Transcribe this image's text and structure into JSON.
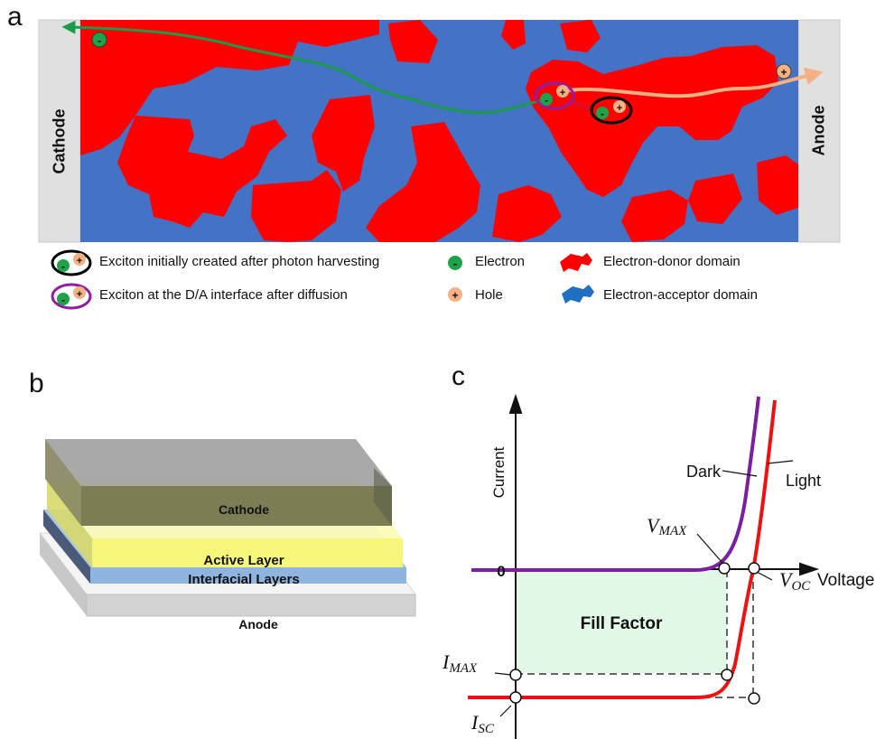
{
  "panel_a": {
    "letter": "a",
    "cathode_label": "Cathode",
    "anode_label": "Anode",
    "electron_symbol": "-",
    "hole_symbol": "+",
    "colors": {
      "acceptor": "#4472c4",
      "donor": "#ff0000",
      "electrode": "#e0e0e0",
      "electron": "#1fa34a",
      "hole": "#f4b183",
      "electron_path": "#1a9b4a",
      "hole_path": "#f4b183",
      "exciton_initial_ring": "#000000",
      "exciton_interface_ring": "#8e1fa0"
    }
  },
  "legend": {
    "exciton_initial": "Exciton initially created after photon harvesting",
    "exciton_interface": "Exciton at the D/A interface after diffusion",
    "electron": "Electron",
    "hole": "Hole",
    "donor": "Electron-donor domain",
    "acceptor": "Electron-acceptor domain"
  },
  "panel_b": {
    "letter": "b",
    "layers": {
      "cathode": "Cathode",
      "active": "Active Layer",
      "interfacial": "Interfacial Layers",
      "anode": "Anode"
    }
  },
  "panel_c": {
    "letter": "c",
    "y_axis_label": "Current",
    "x_axis_label": "Voltage",
    "origin_label": "0",
    "dark_label": "Dark",
    "light_label": "Light",
    "fill_factor_label": "Fill Factor",
    "vmax": {
      "main": "V",
      "sub": "MAX"
    },
    "voc": {
      "main": "V",
      "sub": "OC"
    },
    "imax": {
      "main": "I",
      "sub": "MAX"
    },
    "isc": {
      "main": "I",
      "sub": "SC"
    },
    "colors": {
      "dark": "#7b1fa2",
      "light": "#ee1111",
      "fill": "#e3f8e6"
    }
  }
}
